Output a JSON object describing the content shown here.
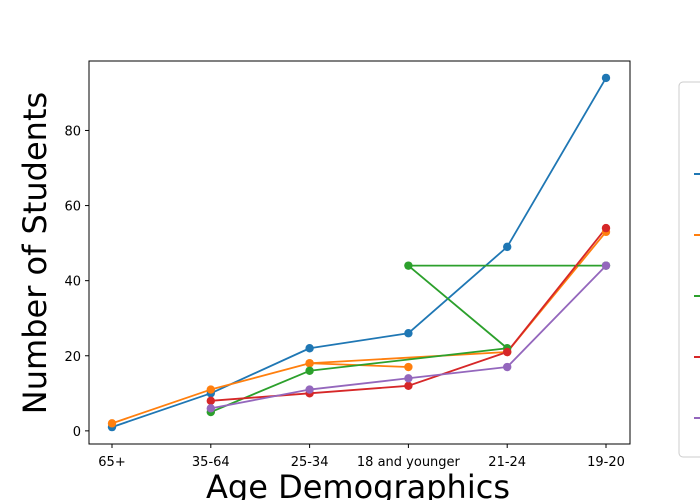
{
  "chart_data": {
    "type": "line",
    "title": "",
    "xlabel": "Age Demographics",
    "ylabel": "Number of Students",
    "categories": [
      "65+",
      "35-64",
      "25-34",
      "18 and younger",
      "21-24",
      "19-20"
    ],
    "yticks": [
      0,
      20,
      40,
      60,
      80
    ],
    "ylim": [
      -3.5,
      98.5
    ],
    "grid": false,
    "legend": "right, outside plot (entry labels not visible)",
    "series": [
      {
        "color": "#1f77b4",
        "points": [
          [
            "65+",
            1
          ],
          [
            "35-64",
            10
          ],
          [
            "25-34",
            22
          ],
          [
            "18 and younger",
            26
          ],
          [
            "21-24",
            49
          ],
          [
            "19-20",
            94
          ]
        ]
      },
      {
        "color": "#ff7f0e",
        "points": [
          [
            "65+",
            2
          ],
          [
            "35-64",
            11
          ],
          [
            "25-34",
            18
          ],
          [
            "18 and younger",
            17
          ]
        ]
      },
      {
        "color": "#ff7f0e",
        "points": [
          [
            "25-34",
            18
          ],
          [
            "21-24",
            21
          ],
          [
            "19-20",
            53
          ]
        ]
      },
      {
        "color": "#2ca02c",
        "points": [
          [
            "35-64",
            5
          ],
          [
            "25-34",
            16
          ],
          [
            "21-24",
            22
          ],
          [
            "18 and younger",
            44
          ],
          [
            "19-20",
            44
          ]
        ]
      },
      {
        "color": "#d62728",
        "points": [
          [
            "35-64",
            8
          ],
          [
            "25-34",
            10
          ],
          [
            "18 and younger",
            12
          ],
          [
            "21-24",
            21
          ],
          [
            "19-20",
            54
          ]
        ]
      },
      {
        "color": "#9467bd",
        "points": [
          [
            "35-64",
            6
          ],
          [
            "25-34",
            11
          ],
          [
            "18 and younger",
            14
          ],
          [
            "21-24",
            17
          ],
          [
            "19-20",
            44
          ]
        ]
      }
    ],
    "legend_colors": [
      "#1f77b4",
      "#ff7f0e",
      "#2ca02c",
      "#d62728",
      "#9467bd"
    ]
  }
}
